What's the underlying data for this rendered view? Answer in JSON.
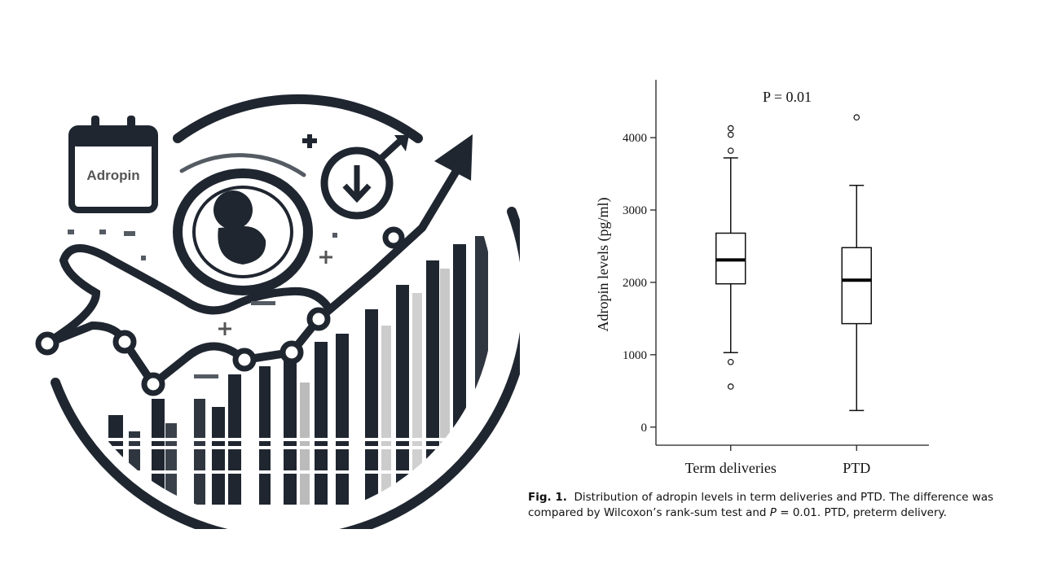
{
  "illustration": {
    "calendar_label": "Adropin",
    "icons": [
      "calendar-icon",
      "fetus-icon",
      "male-symbol-icon",
      "arrow-up-icon",
      "plus-icon"
    ]
  },
  "chart_data": {
    "type": "boxplot",
    "title": "P = 0.01",
    "xlabel": "",
    "ylabel": "Adropin levels (pg/ml)",
    "ylim": [
      -250,
      4800
    ],
    "yticks": [
      0,
      1000,
      2000,
      3000,
      4000
    ],
    "ytick_labels": [
      "0",
      "1000",
      "2000",
      "3000",
      "4000"
    ],
    "categories": [
      "Term deliveries",
      "PTD"
    ],
    "boxes": [
      {
        "name": "Term deliveries",
        "whisker_low": 1030,
        "q1": 1980,
        "median": 2310,
        "q3": 2680,
        "whisker_high": 3720,
        "outliers": [
          4130,
          4040,
          3820,
          900,
          560
        ]
      },
      {
        "name": "PTD",
        "whisker_low": 230,
        "q1": 1430,
        "median": 2030,
        "q3": 2480,
        "whisker_high": 3340,
        "outliers": [
          4280
        ]
      }
    ],
    "grid": false
  },
  "caption": {
    "label": "Fig. 1.",
    "text_part1": "Distribution of adropin levels in term deliveries and PTD. The difference was compared by Wilcoxon’s rank-sum test and ",
    "p_symbol": "P",
    "text_part2": " = 0.01. PTD, preterm delivery."
  }
}
